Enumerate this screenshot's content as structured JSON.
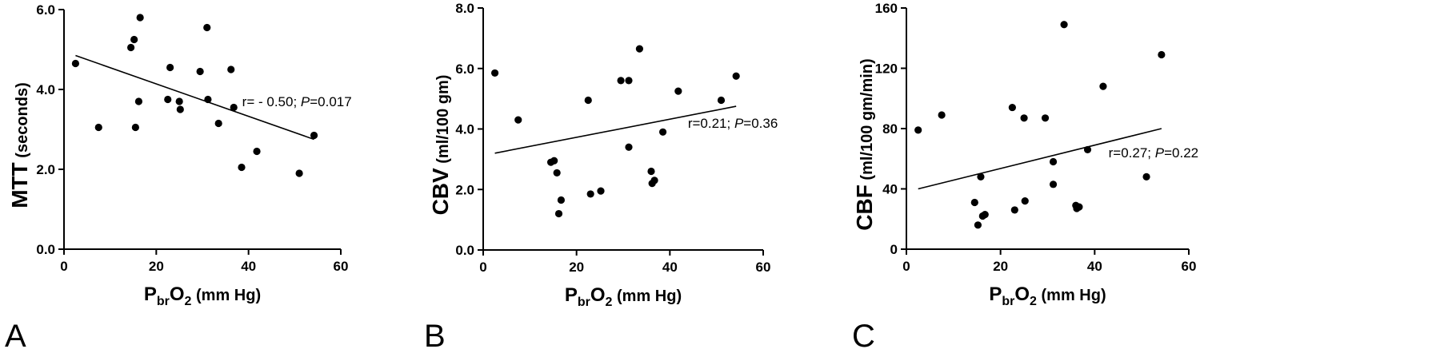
{
  "chart_data": [
    {
      "type": "scatter",
      "panel_label": "A",
      "ylabel_main": "MTT",
      "ylabel_unit": "(seconds)",
      "xlabel": {
        "base": "P",
        "sub1": "br",
        "mid": "O",
        "sub2": "2",
        "unit": "(mm Hg)"
      },
      "xlim": [
        0,
        60
      ],
      "ylim": [
        0.0,
        6.0
      ],
      "xticks": [
        0,
        20,
        40,
        60
      ],
      "yticks": [
        0.0,
        2.0,
        4.0,
        6.0
      ],
      "ytick_labels": [
        "0.0",
        "2.0",
        "4.0",
        "6.0"
      ],
      "points": [
        [
          2.5,
          4.65
        ],
        [
          7.5,
          3.05
        ],
        [
          14.5,
          5.05
        ],
        [
          15.2,
          5.25
        ],
        [
          15.5,
          3.05
        ],
        [
          16.2,
          3.7
        ],
        [
          16.5,
          5.8
        ],
        [
          22.5,
          3.75
        ],
        [
          23.0,
          4.55
        ],
        [
          25.0,
          3.7
        ],
        [
          25.2,
          3.5
        ],
        [
          29.5,
          4.45
        ],
        [
          31.0,
          5.55
        ],
        [
          31.2,
          3.75
        ],
        [
          33.5,
          3.15
        ],
        [
          36.2,
          4.5
        ],
        [
          36.8,
          3.55
        ],
        [
          38.5,
          2.05
        ],
        [
          41.8,
          2.45
        ],
        [
          51.0,
          1.9
        ],
        [
          54.2,
          2.85
        ]
      ],
      "fit_line": {
        "x": [
          2.5,
          54.2
        ],
        "y": [
          4.85,
          2.75
        ]
      },
      "annotation": {
        "pre": "r= - 0.50; ",
        "p": "P",
        "post": "=0.017"
      },
      "annotation_anchor": [
        50.5,
        3.7
      ]
    },
    {
      "type": "scatter",
      "panel_label": "B",
      "ylabel_main": "CBV",
      "ylabel_unit": "(ml/100 gm)",
      "xlabel": {
        "base": "P",
        "sub1": "br",
        "mid": "O",
        "sub2": "2",
        "unit": "(mm Hg)"
      },
      "xlim": [
        0,
        60
      ],
      "ylim": [
        0.0,
        8.0
      ],
      "xticks": [
        0,
        20,
        40,
        60
      ],
      "yticks": [
        0.0,
        2.0,
        4.0,
        6.0,
        8.0
      ],
      "ytick_labels": [
        "0.0",
        "2.0",
        "4.0",
        "6.0",
        "8.0"
      ],
      "points": [
        [
          2.5,
          5.85
        ],
        [
          7.5,
          4.3
        ],
        [
          14.5,
          2.9
        ],
        [
          15.2,
          2.95
        ],
        [
          15.8,
          2.55
        ],
        [
          16.2,
          1.2
        ],
        [
          16.7,
          1.65
        ],
        [
          22.5,
          4.95
        ],
        [
          23.0,
          1.85
        ],
        [
          25.2,
          1.95
        ],
        [
          29.5,
          5.6
        ],
        [
          31.2,
          5.6
        ],
        [
          31.2,
          3.4
        ],
        [
          33.5,
          6.65
        ],
        [
          36.0,
          2.6
        ],
        [
          36.2,
          2.2
        ],
        [
          36.7,
          2.3
        ],
        [
          38.5,
          3.9
        ],
        [
          41.8,
          5.25
        ],
        [
          51.0,
          4.95
        ],
        [
          54.2,
          5.75
        ]
      ],
      "fit_line": {
        "x": [
          2.5,
          54.2
        ],
        "y": [
          3.2,
          4.75
        ]
      },
      "annotation": {
        "pre": "r=0.21; ",
        "p": "P",
        "post": "=0.36"
      },
      "annotation_anchor": [
        53.5,
        4.2
      ]
    },
    {
      "type": "scatter",
      "panel_label": "C",
      "ylabel_main": "CBF",
      "ylabel_unit": "(ml/100 gm/min)",
      "xlabel": {
        "base": "P",
        "sub1": "br",
        "mid": "O",
        "sub2": "2",
        "unit": "(mm Hg)"
      },
      "xlim": [
        0,
        60
      ],
      "ylim": [
        0,
        160
      ],
      "xticks": [
        0,
        20,
        40,
        60
      ],
      "yticks": [
        0,
        40,
        80,
        120,
        160
      ],
      "ytick_labels": [
        "0",
        "40",
        "80",
        "120",
        "160"
      ],
      "points": [
        [
          2.5,
          79
        ],
        [
          7.5,
          89
        ],
        [
          14.5,
          31
        ],
        [
          15.2,
          16
        ],
        [
          15.8,
          48
        ],
        [
          16.2,
          22
        ],
        [
          16.7,
          23
        ],
        [
          22.5,
          94
        ],
        [
          23.0,
          26
        ],
        [
          25.0,
          87
        ],
        [
          25.2,
          32
        ],
        [
          29.5,
          87
        ],
        [
          31.2,
          58
        ],
        [
          31.2,
          43
        ],
        [
          33.5,
          149
        ],
        [
          36.0,
          29
        ],
        [
          36.2,
          27
        ],
        [
          36.7,
          28
        ],
        [
          38.5,
          66
        ],
        [
          41.8,
          108
        ],
        [
          51.0,
          48
        ],
        [
          54.2,
          129
        ]
      ],
      "fit_line": {
        "x": [
          2.5,
          54.2
        ],
        "y": [
          40,
          80
        ]
      },
      "annotation": {
        "pre": "r=0.27; ",
        "p": "P",
        "post": "=0.22"
      },
      "annotation_anchor": [
        52.5,
        64
      ]
    }
  ]
}
